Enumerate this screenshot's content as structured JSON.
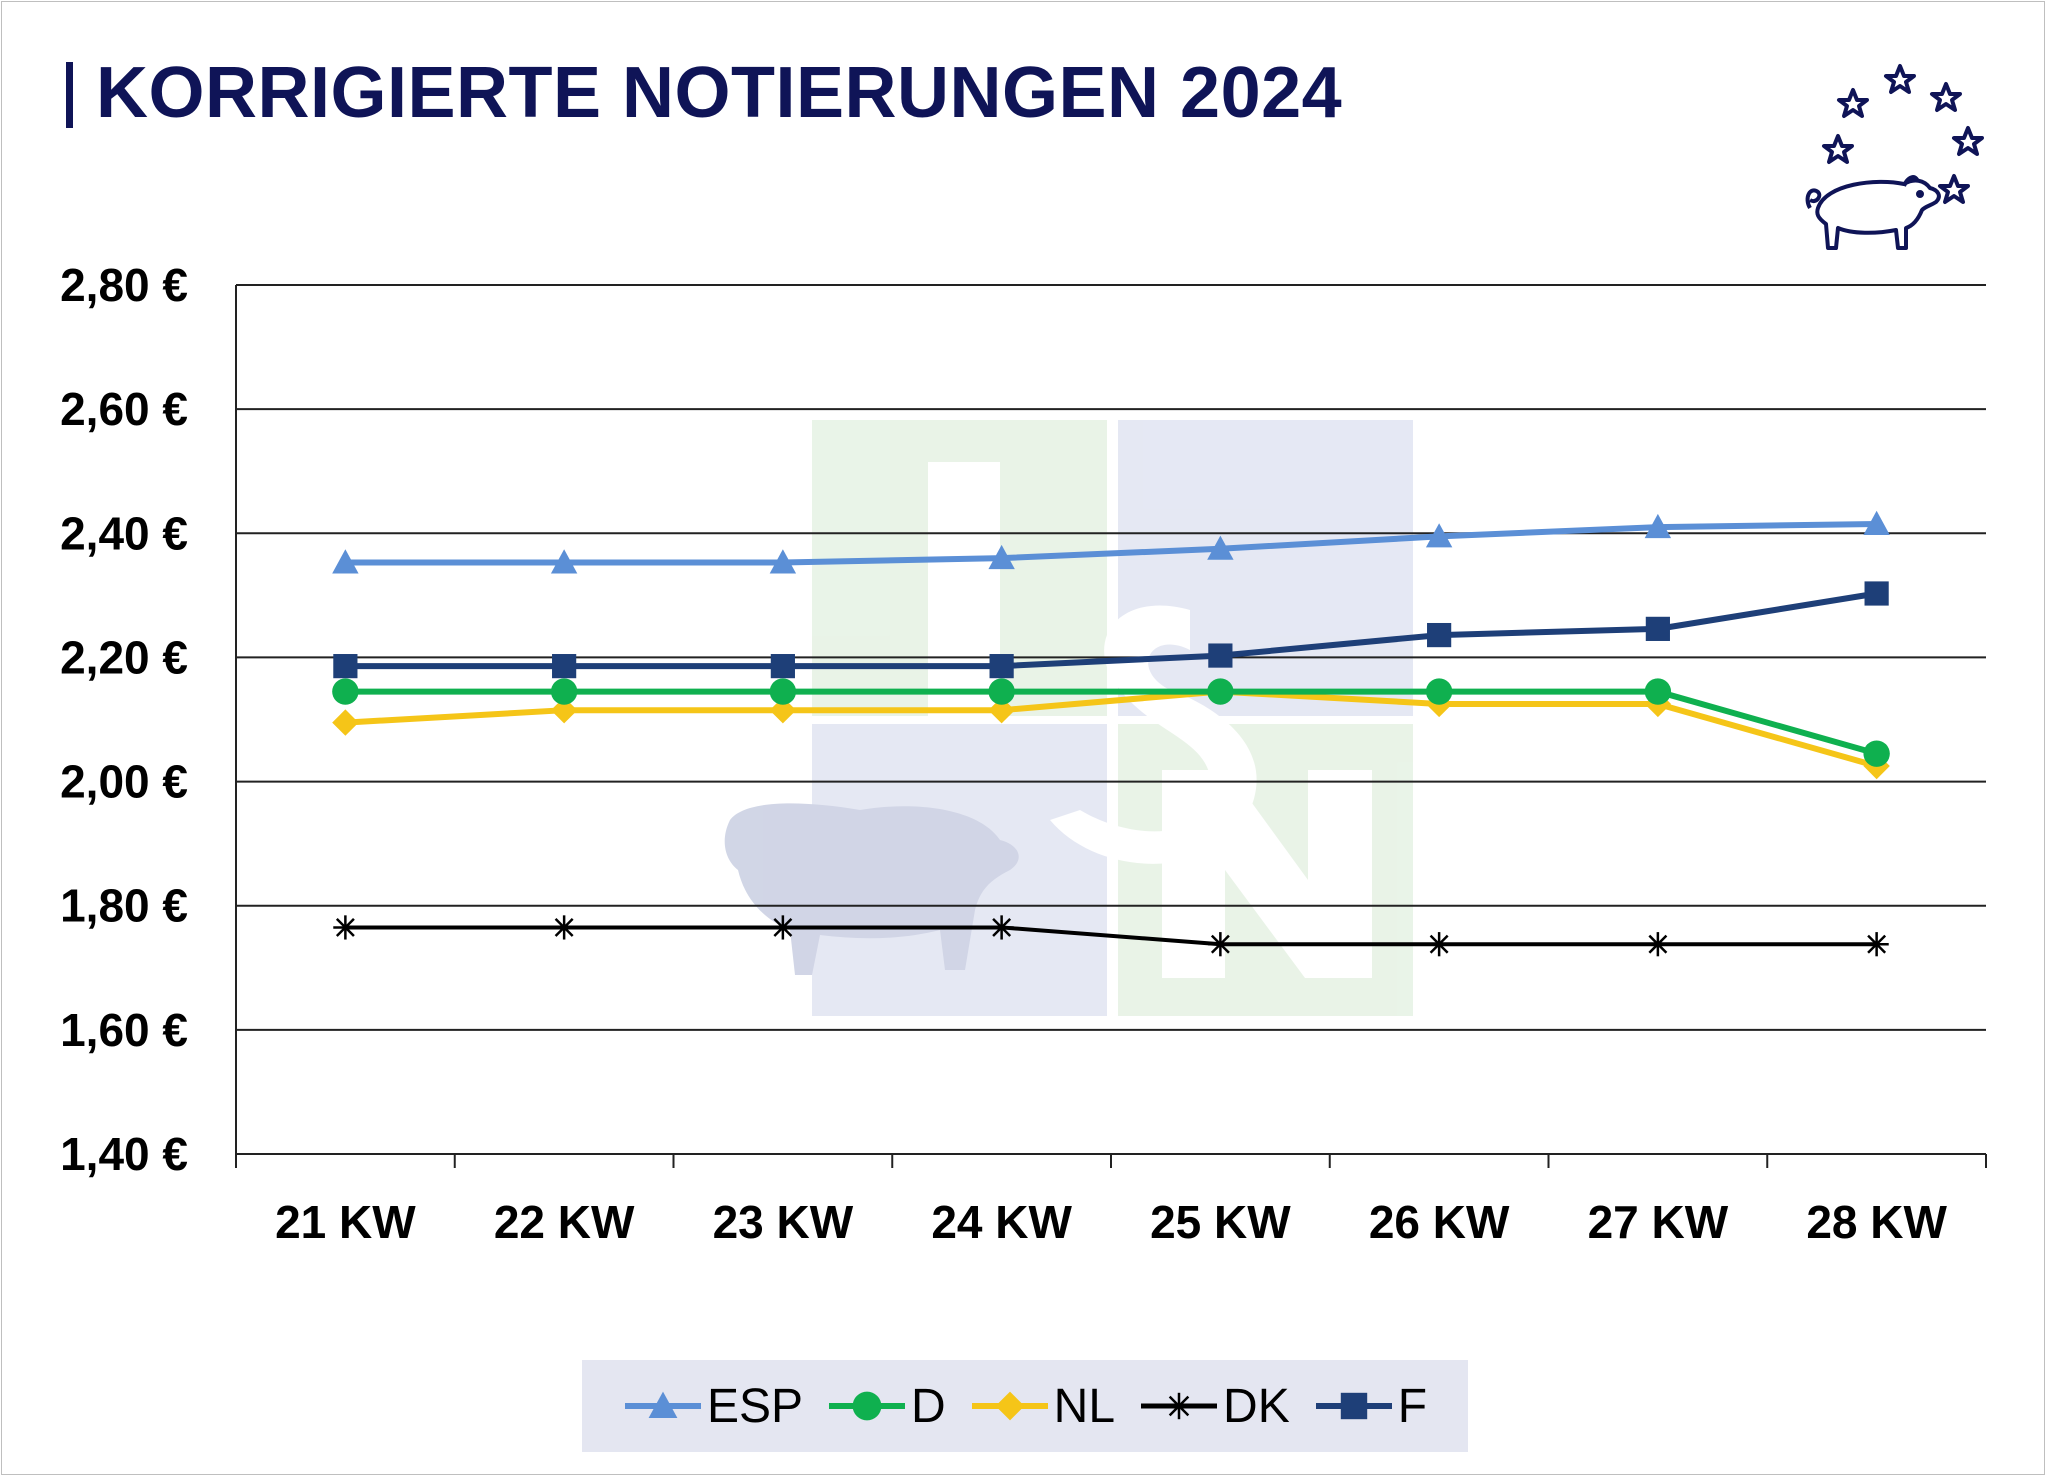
{
  "title": "KORRIGIERTE NOTIERUNGEN 2024",
  "chart_data": {
    "type": "line",
    "title": "KORRIGIERTE NOTIERUNGEN 2024",
    "categories": [
      "21 KW",
      "22 KW",
      "23 KW",
      "24 KW",
      "25 KW",
      "26 KW",
      "27 KW",
      "28 KW"
    ],
    "ylim": [
      1.4,
      2.8
    ],
    "yticks": [
      1.4,
      1.6,
      1.8,
      2.0,
      2.2,
      2.4,
      2.6,
      2.8
    ],
    "ytick_labels": [
      "1,40 €",
      "1,60 €",
      "1,80 €",
      "2,00 €",
      "2,20 €",
      "2,40 €",
      "2,60 €",
      "2,80 €"
    ],
    "grid": true,
    "legend_position": "bottom",
    "series": [
      {
        "name": "ESP",
        "color": "#5b8fd6",
        "marker": "triangle",
        "values": [
          2.353,
          2.353,
          2.353,
          2.36,
          2.375,
          2.395,
          2.41,
          2.415
        ]
      },
      {
        "name": "D",
        "color": "#0fb04f",
        "marker": "circle",
        "values": [
          2.145,
          2.145,
          2.145,
          2.145,
          2.145,
          2.145,
          2.145,
          2.045
        ]
      },
      {
        "name": "NL",
        "color": "#f5c518",
        "marker": "diamond",
        "values": [
          2.095,
          2.115,
          2.115,
          2.115,
          2.145,
          2.125,
          2.125,
          2.025
        ]
      },
      {
        "name": "DK",
        "color": "#000000",
        "marker": "star",
        "values": [
          1.765,
          1.765,
          1.765,
          1.765,
          1.738,
          1.738,
          1.738,
          1.738
        ]
      },
      {
        "name": "F",
        "color": "#1e3f78",
        "marker": "square",
        "values": [
          2.186,
          2.186,
          2.186,
          2.186,
          2.203,
          2.236,
          2.246,
          2.303
        ]
      }
    ]
  }
}
